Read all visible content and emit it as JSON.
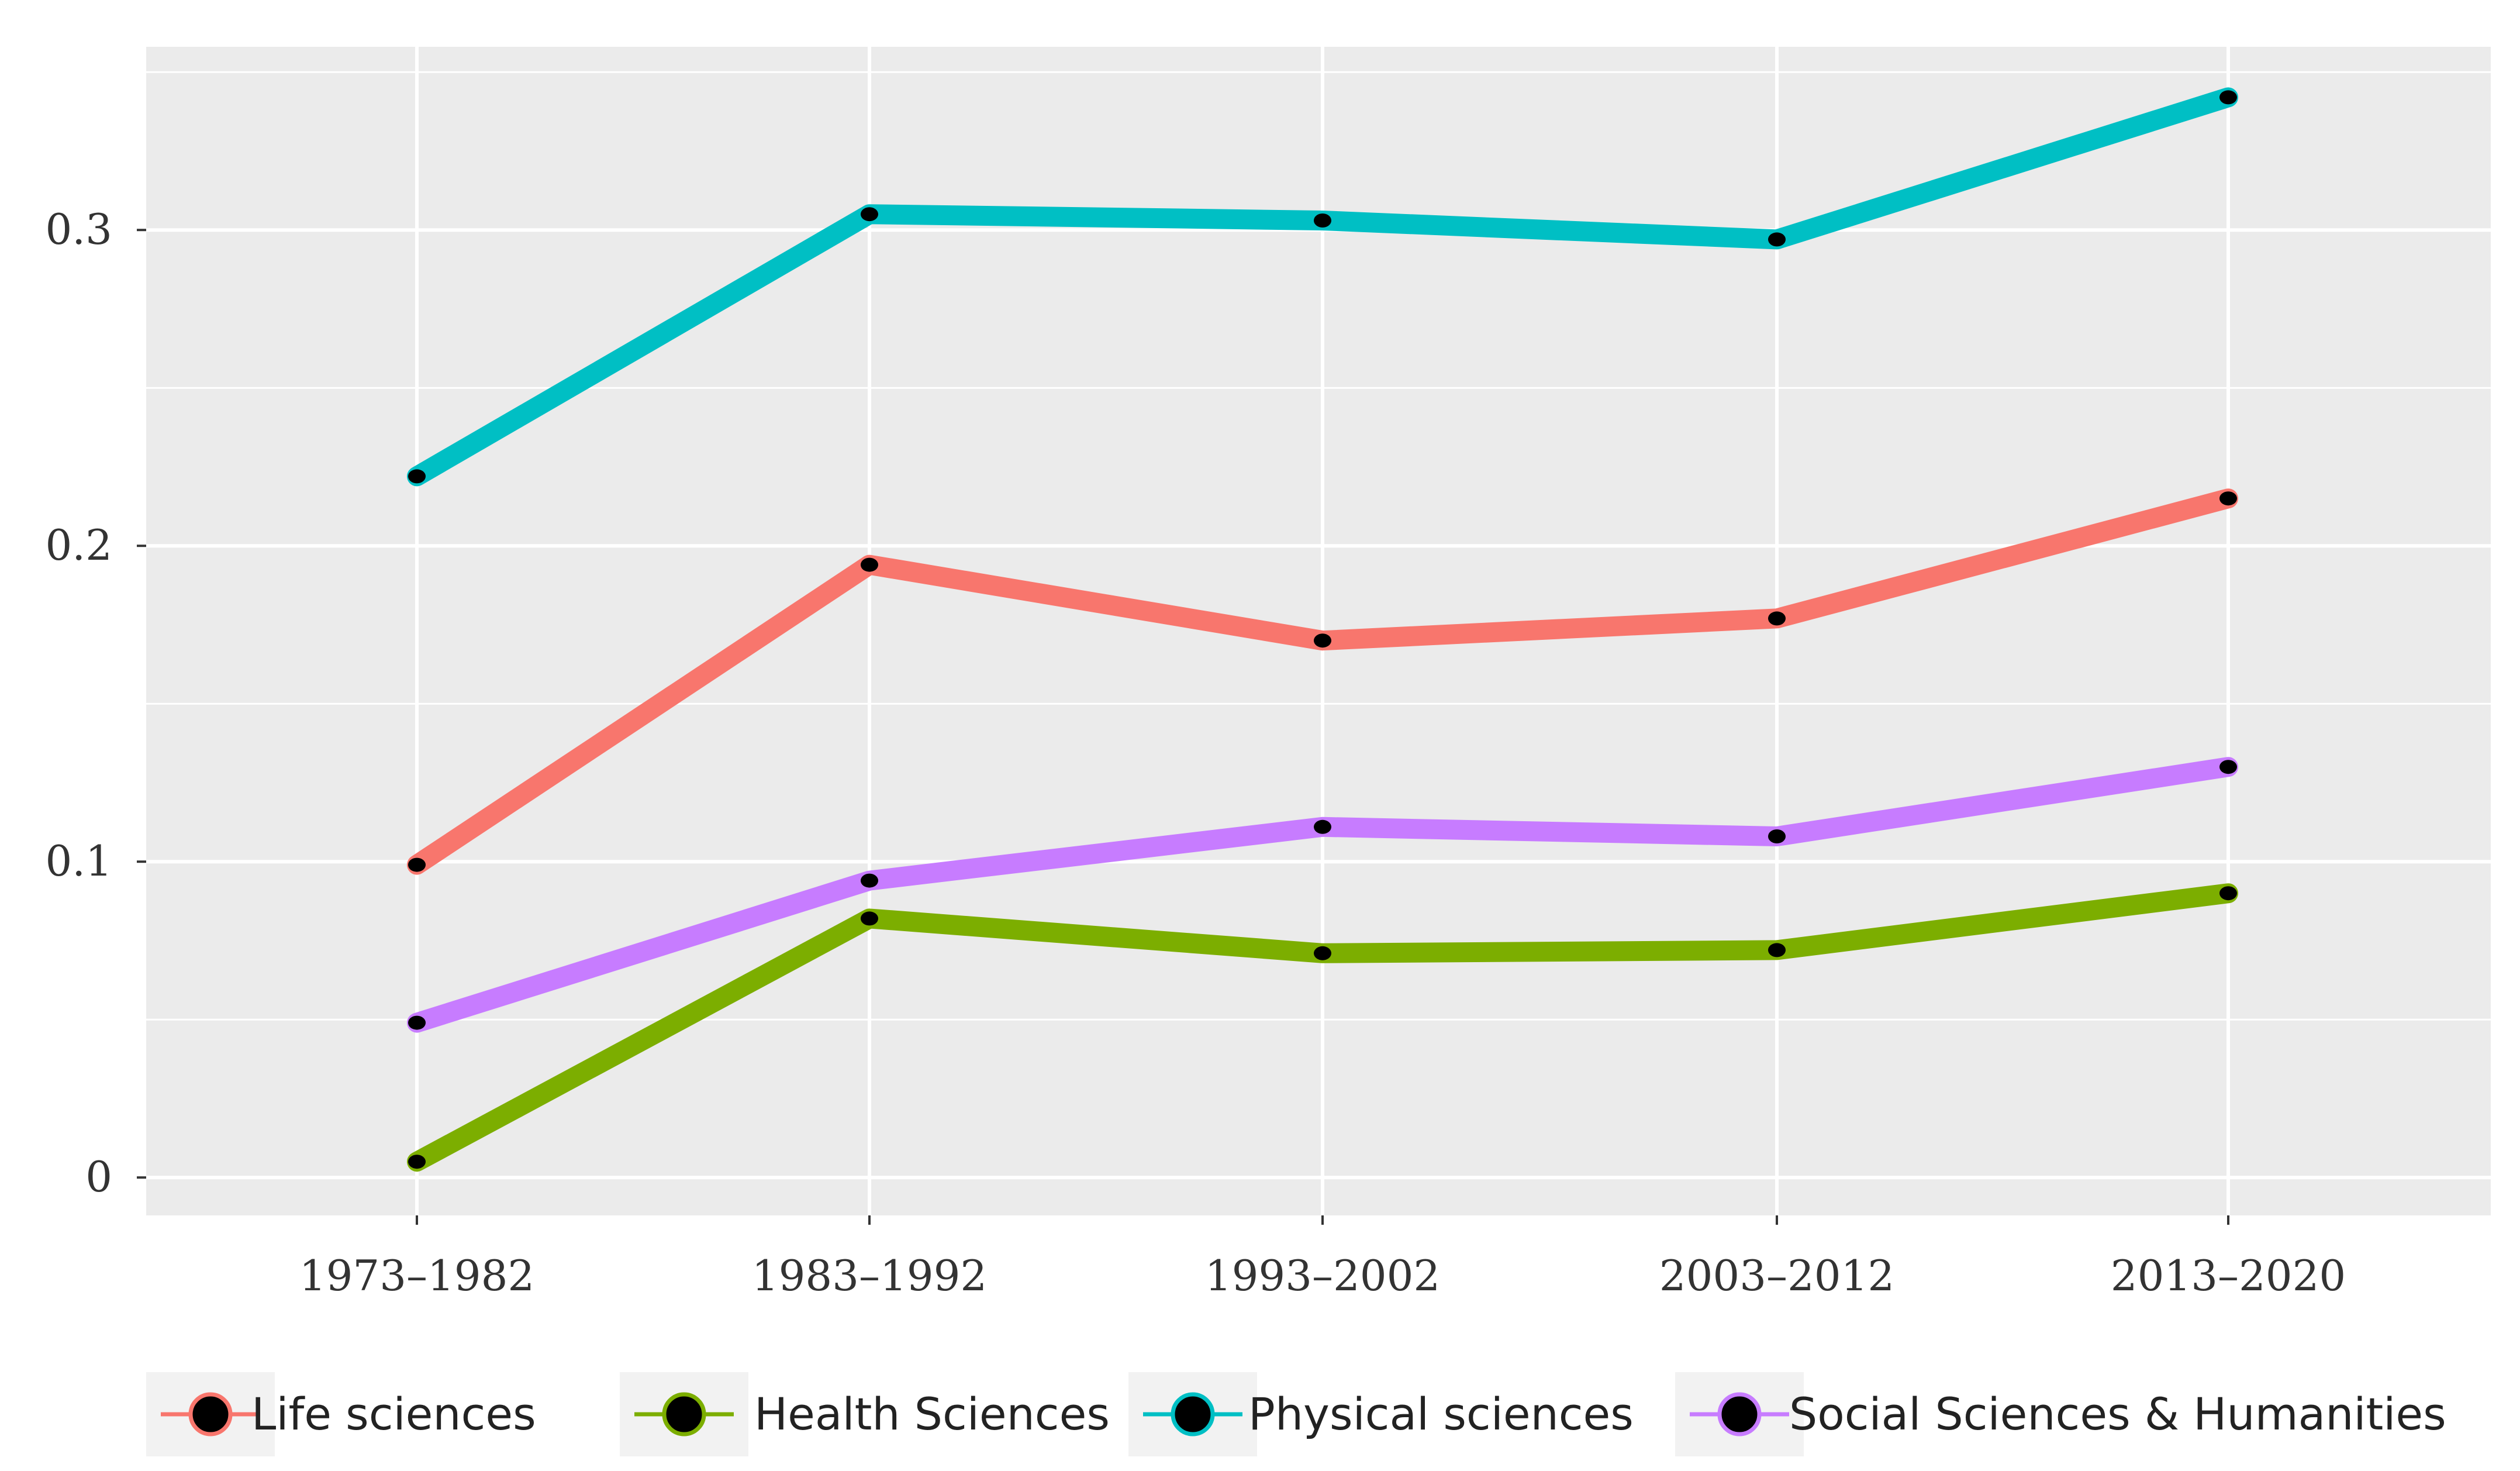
{
  "chart_data": {
    "type": "line",
    "title": "",
    "xlabel": "",
    "ylabel": "",
    "categories": [
      "1973–1982",
      "1983–1992",
      "1993–2002",
      "2003–2012",
      "2013–2020"
    ],
    "ylim": [
      -0.012,
      0.358
    ],
    "yticks": [
      0,
      0.1,
      0.2,
      0.3
    ],
    "ytick_labels": [
      "0",
      "0.1",
      "0.2",
      "0.3"
    ],
    "grid": true,
    "legend_position": "bottom",
    "series": [
      {
        "name": "Life sciences",
        "color": "#F8766D",
        "values": [
          0.099,
          0.194,
          0.17,
          0.177,
          0.215
        ]
      },
      {
        "name": "Health Sciences",
        "color": "#7CAE00",
        "values": [
          0.005,
          0.082,
          0.071,
          0.072,
          0.09
        ]
      },
      {
        "name": "Physical sciences",
        "color": "#00BFC4",
        "values": [
          0.222,
          0.305,
          0.303,
          0.297,
          0.342
        ]
      },
      {
        "name": "Social Sciences & Humanities",
        "color": "#C77CFF",
        "values": [
          0.049,
          0.094,
          0.111,
          0.108,
          0.13
        ]
      }
    ]
  }
}
